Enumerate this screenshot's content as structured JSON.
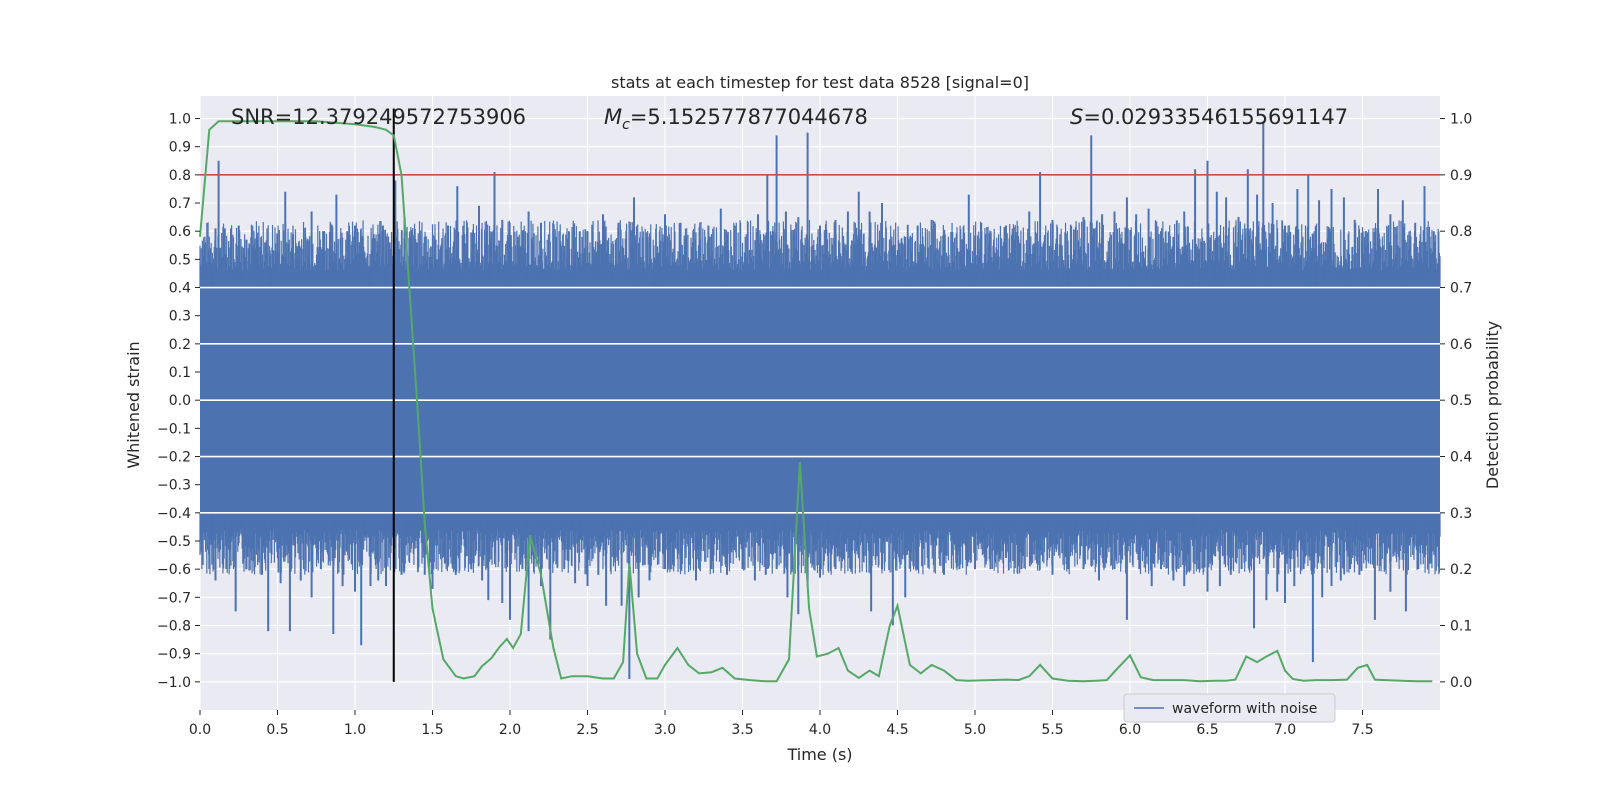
{
  "chart_data": {
    "type": "line",
    "title": "stats at each timestep for test data 8528 [signal=0]",
    "xlabel": "Time (s)",
    "ylabel_left": "Whitened strain",
    "ylabel_right": "Detection probability",
    "xlim": [
      0.0,
      8.0
    ],
    "ylim_left": [
      -1.1,
      1.08
    ],
    "ylim_right": [
      -0.05,
      1.04
    ],
    "x_ticks": [
      "0.0",
      "0.5",
      "1.0",
      "1.5",
      "2.0",
      "2.5",
      "3.0",
      "3.5",
      "4.0",
      "4.5",
      "5.0",
      "5.5",
      "6.0",
      "6.5",
      "7.0",
      "7.5"
    ],
    "y_ticks_left": [
      "1.0",
      "0.9",
      "0.8",
      "0.7",
      "0.6",
      "0.5",
      "0.4",
      "0.3",
      "0.2",
      "0.1",
      "0.0",
      "−0.1",
      "−0.2",
      "−0.3",
      "−0.4",
      "−0.5",
      "−0.6",
      "−0.7",
      "−0.8",
      "−0.9",
      "−1.0"
    ],
    "y_ticks_right": [
      "1.0",
      "0.9",
      "0.8",
      "0.7",
      "0.6",
      "0.5",
      "0.4",
      "0.3",
      "0.2",
      "0.1",
      "0.0"
    ],
    "annotations": {
      "snr": "SNR=12.379249572753906",
      "mc_symbol": "M",
      "mc_sub": "c",
      "mc_value": "=5.152577877044678",
      "s_symbol": "S",
      "s_value": "=0.02933546155691147"
    },
    "threshold": {
      "axis": "right",
      "value": 0.9,
      "color": "#c44e52"
    },
    "peak_time": {
      "value": 1.25,
      "color": "#000000"
    },
    "waveform_envelope": {
      "name": "waveform with noise",
      "color": "#4c72b0",
      "core_amplitude": 0.4,
      "spikes_up": [
        [
          0.06,
          0.52
        ],
        [
          0.1,
          0.61
        ],
        [
          0.12,
          0.85
        ],
        [
          0.16,
          0.61
        ],
        [
          0.2,
          0.61
        ],
        [
          0.25,
          0.62
        ],
        [
          0.3,
          0.57
        ],
        [
          0.35,
          0.55
        ],
        [
          0.42,
          0.56
        ],
        [
          0.5,
          0.58
        ],
        [
          0.55,
          0.74
        ],
        [
          0.6,
          0.59
        ],
        [
          0.68,
          0.58
        ],
        [
          0.72,
          0.67
        ],
        [
          0.8,
          0.6
        ],
        [
          0.88,
          0.73
        ],
        [
          0.95,
          0.6
        ],
        [
          1.0,
          0.62
        ],
        [
          1.05,
          0.58
        ],
        [
          1.12,
          0.59
        ],
        [
          1.18,
          0.62
        ],
        [
          1.22,
          0.56
        ],
        [
          1.26,
          0.78
        ],
        [
          1.32,
          0.65
        ],
        [
          1.4,
          0.56
        ],
        [
          1.45,
          0.58
        ],
        [
          1.52,
          0.57
        ],
        [
          1.6,
          0.62
        ],
        [
          1.66,
          0.76
        ],
        [
          1.7,
          0.59
        ],
        [
          1.8,
          0.69
        ],
        [
          1.85,
          0.6
        ],
        [
          1.9,
          0.81
        ],
        [
          1.95,
          0.64
        ],
        [
          2.05,
          0.58
        ],
        [
          2.12,
          0.67
        ],
        [
          2.2,
          0.63
        ],
        [
          2.3,
          0.58
        ],
        [
          2.38,
          0.6
        ],
        [
          2.45,
          0.6
        ],
        [
          2.5,
          0.6
        ],
        [
          2.6,
          0.66
        ],
        [
          2.7,
          0.63
        ],
        [
          2.8,
          0.72
        ],
        [
          2.9,
          0.58
        ],
        [
          3.0,
          0.66
        ],
        [
          3.1,
          0.63
        ],
        [
          3.18,
          0.56
        ],
        [
          3.28,
          0.62
        ],
        [
          3.36,
          0.68
        ],
        [
          3.45,
          0.62
        ],
        [
          3.52,
          0.58
        ],
        [
          3.6,
          0.66
        ],
        [
          3.66,
          0.8
        ],
        [
          3.72,
          0.94
        ],
        [
          3.78,
          0.67
        ],
        [
          3.86,
          0.65
        ],
        [
          3.92,
          0.95
        ],
        [
          4.0,
          0.62
        ],
        [
          4.1,
          0.64
        ],
        [
          4.18,
          0.67
        ],
        [
          4.25,
          0.74
        ],
        [
          4.32,
          0.67
        ],
        [
          4.4,
          0.7
        ],
        [
          4.47,
          0.55
        ],
        [
          4.55,
          0.58
        ],
        [
          4.63,
          0.62
        ],
        [
          4.72,
          0.64
        ],
        [
          4.8,
          0.56
        ],
        [
          4.88,
          0.58
        ],
        [
          4.96,
          0.73
        ],
        [
          5.04,
          0.63
        ],
        [
          5.1,
          0.6
        ],
        [
          5.2,
          0.62
        ],
        [
          5.28,
          0.57
        ],
        [
          5.35,
          0.67
        ],
        [
          5.42,
          0.81
        ],
        [
          5.5,
          0.64
        ],
        [
          5.56,
          0.55
        ],
        [
          5.62,
          0.62
        ],
        [
          5.7,
          0.65
        ],
        [
          5.75,
          0.94
        ],
        [
          5.82,
          0.66
        ],
        [
          5.9,
          0.67
        ],
        [
          5.98,
          0.72
        ],
        [
          6.04,
          0.66
        ],
        [
          6.12,
          0.68
        ],
        [
          6.2,
          0.6
        ],
        [
          6.28,
          0.58
        ],
        [
          6.35,
          0.67
        ],
        [
          6.42,
          0.82
        ],
        [
          6.5,
          0.85
        ],
        [
          6.56,
          0.74
        ],
        [
          6.62,
          0.72
        ],
        [
          6.7,
          0.65
        ],
        [
          6.76,
          0.82
        ],
        [
          6.82,
          0.73
        ],
        [
          6.86,
          0.99
        ],
        [
          6.92,
          0.7
        ],
        [
          7.0,
          0.62
        ],
        [
          7.08,
          0.75
        ],
        [
          7.15,
          0.8
        ],
        [
          7.22,
          0.71
        ],
        [
          7.3,
          0.75
        ],
        [
          7.38,
          0.72
        ],
        [
          7.45,
          0.64
        ],
        [
          7.52,
          0.6
        ],
        [
          7.6,
          0.75
        ],
        [
          7.68,
          0.66
        ],
        [
          7.76,
          0.71
        ],
        [
          7.84,
          0.63
        ],
        [
          7.9,
          0.76
        ],
        [
          7.96,
          0.6
        ]
      ],
      "spikes_down": [
        [
          0.06,
          -0.6
        ],
        [
          0.1,
          -0.64
        ],
        [
          0.17,
          -0.6
        ],
        [
          0.23,
          -0.75
        ],
        [
          0.3,
          -0.6
        ],
        [
          0.4,
          -0.62
        ],
        [
          0.44,
          -0.82
        ],
        [
          0.52,
          -0.65
        ],
        [
          0.58,
          -0.82
        ],
        [
          0.65,
          -0.64
        ],
        [
          0.72,
          -0.7
        ],
        [
          0.78,
          -0.6
        ],
        [
          0.86,
          -0.83
        ],
        [
          0.92,
          -0.66
        ],
        [
          1.0,
          -0.68
        ],
        [
          1.04,
          -0.87
        ],
        [
          1.1,
          -0.66
        ],
        [
          1.15,
          -0.64
        ],
        [
          1.2,
          -0.66
        ],
        [
          1.3,
          -0.62
        ],
        [
          1.45,
          -0.62
        ],
        [
          1.5,
          -0.67
        ],
        [
          1.58,
          -0.58
        ],
        [
          1.65,
          -0.62
        ],
        [
          1.75,
          -0.6
        ],
        [
          1.82,
          -0.64
        ],
        [
          1.86,
          -0.71
        ],
        [
          1.95,
          -0.72
        ],
        [
          2.0,
          -0.78
        ],
        [
          2.08,
          -0.6
        ],
        [
          2.12,
          -0.82
        ],
        [
          2.2,
          -0.66
        ],
        [
          2.26,
          -0.85
        ],
        [
          2.35,
          -0.6
        ],
        [
          2.42,
          -0.65
        ],
        [
          2.5,
          -0.66
        ],
        [
          2.57,
          -0.62
        ],
        [
          2.62,
          -0.73
        ],
        [
          2.72,
          -0.73
        ],
        [
          2.77,
          -0.99
        ],
        [
          2.83,
          -0.7
        ],
        [
          2.9,
          -0.64
        ],
        [
          3.0,
          -0.6
        ],
        [
          3.1,
          -0.6
        ],
        [
          3.2,
          -0.64
        ],
        [
          3.3,
          -0.6
        ],
        [
          3.4,
          -0.62
        ],
        [
          3.5,
          -0.6
        ],
        [
          3.58,
          -0.64
        ],
        [
          3.65,
          -0.62
        ],
        [
          3.72,
          -0.6
        ],
        [
          3.79,
          -0.7
        ],
        [
          3.86,
          -0.76
        ],
        [
          3.92,
          -0.66
        ],
        [
          4.0,
          -0.63
        ],
        [
          4.1,
          -0.6
        ],
        [
          4.2,
          -0.6
        ],
        [
          4.33,
          -0.75
        ],
        [
          4.4,
          -0.6
        ],
        [
          4.47,
          -0.8
        ],
        [
          4.55,
          -0.7
        ],
        [
          4.62,
          -0.6
        ],
        [
          4.7,
          -0.59
        ],
        [
          4.8,
          -0.62
        ],
        [
          4.9,
          -0.6
        ],
        [
          5.0,
          -0.6
        ],
        [
          5.1,
          -0.6
        ],
        [
          5.2,
          -0.56
        ],
        [
          5.3,
          -0.6
        ],
        [
          5.4,
          -0.58
        ],
        [
          5.5,
          -0.62
        ],
        [
          5.6,
          -0.6
        ],
        [
          5.7,
          -0.6
        ],
        [
          5.8,
          -0.64
        ],
        [
          5.9,
          -0.6
        ],
        [
          5.98,
          -0.78
        ],
        [
          6.06,
          -0.6
        ],
        [
          6.14,
          -0.66
        ],
        [
          6.2,
          -0.6
        ],
        [
          6.28,
          -0.64
        ],
        [
          6.35,
          -0.66
        ],
        [
          6.44,
          -0.6
        ],
        [
          6.5,
          -0.68
        ],
        [
          6.58,
          -0.66
        ],
        [
          6.65,
          -0.62
        ],
        [
          6.72,
          -0.6
        ],
        [
          6.8,
          -0.81
        ],
        [
          6.88,
          -0.71
        ],
        [
          6.95,
          -0.68
        ],
        [
          7.0,
          -0.72
        ],
        [
          7.06,
          -0.66
        ],
        [
          7.12,
          -0.6
        ],
        [
          7.18,
          -0.93
        ],
        [
          7.24,
          -0.7
        ],
        [
          7.3,
          -0.66
        ],
        [
          7.36,
          -0.64
        ],
        [
          7.42,
          -0.6
        ],
        [
          7.48,
          -0.62
        ],
        [
          7.58,
          -0.78
        ],
        [
          7.68,
          -0.68
        ],
        [
          7.78,
          -0.75
        ],
        [
          7.86,
          -0.6
        ],
        [
          7.94,
          -0.58
        ]
      ]
    },
    "probability_series": {
      "axis": "right",
      "color": "#55a868",
      "x": [
        0.0,
        0.06,
        0.12,
        0.25,
        0.5,
        0.75,
        1.0,
        1.13,
        1.2,
        1.25,
        1.3,
        1.35,
        1.4,
        1.45,
        1.5,
        1.57,
        1.65,
        1.7,
        1.77,
        1.82,
        1.88,
        1.93,
        1.98,
        2.02,
        2.07,
        2.13,
        2.2,
        2.28,
        2.33,
        2.4,
        2.5,
        2.6,
        2.67,
        2.73,
        2.77,
        2.82,
        2.88,
        2.95,
        3.0,
        3.08,
        3.15,
        3.22,
        3.3,
        3.37,
        3.45,
        3.55,
        3.65,
        3.72,
        3.8,
        3.87,
        3.93,
        3.98,
        4.05,
        4.12,
        4.18,
        4.25,
        4.32,
        4.38,
        4.45,
        4.5,
        4.58,
        4.65,
        4.72,
        4.8,
        4.88,
        4.95,
        5.1,
        5.2,
        5.28,
        5.35,
        5.42,
        5.5,
        5.6,
        5.7,
        5.78,
        5.85,
        5.93,
        6.0,
        6.07,
        6.15,
        6.25,
        6.35,
        6.45,
        6.55,
        6.62,
        6.68,
        6.75,
        6.82,
        6.88,
        6.95,
        7.0,
        7.05,
        7.12,
        7.2,
        7.3,
        7.4,
        7.47,
        7.53,
        7.58,
        7.65,
        7.75,
        7.85,
        7.95
      ],
      "y": [
        0.79,
        0.98,
        0.995,
        0.995,
        0.995,
        0.995,
        0.99,
        0.985,
        0.98,
        0.97,
        0.9,
        0.7,
        0.5,
        0.28,
        0.13,
        0.04,
        0.01,
        0.006,
        0.01,
        0.028,
        0.042,
        0.061,
        0.076,
        0.06,
        0.085,
        0.26,
        0.19,
        0.06,
        0.006,
        0.01,
        0.01,
        0.006,
        0.006,
        0.035,
        0.21,
        0.05,
        0.006,
        0.006,
        0.03,
        0.06,
        0.03,
        0.015,
        0.017,
        0.025,
        0.006,
        0.003,
        0.001,
        0.001,
        0.04,
        0.39,
        0.13,
        0.045,
        0.05,
        0.06,
        0.02,
        0.007,
        0.02,
        0.01,
        0.1,
        0.135,
        0.03,
        0.015,
        0.03,
        0.02,
        0.003,
        0.002,
        0.003,
        0.004,
        0.003,
        0.01,
        0.03,
        0.006,
        0.002,
        0.001,
        0.002,
        0.003,
        0.027,
        0.047,
        0.008,
        0.003,
        0.003,
        0.003,
        0.001,
        0.002,
        0.002,
        0.004,
        0.045,
        0.035,
        0.045,
        0.055,
        0.02,
        0.005,
        0.002,
        0.003,
        0.003,
        0.004,
        0.025,
        0.03,
        0.004,
        0.003,
        0.002,
        0.001,
        0.001
      ]
    }
  }
}
